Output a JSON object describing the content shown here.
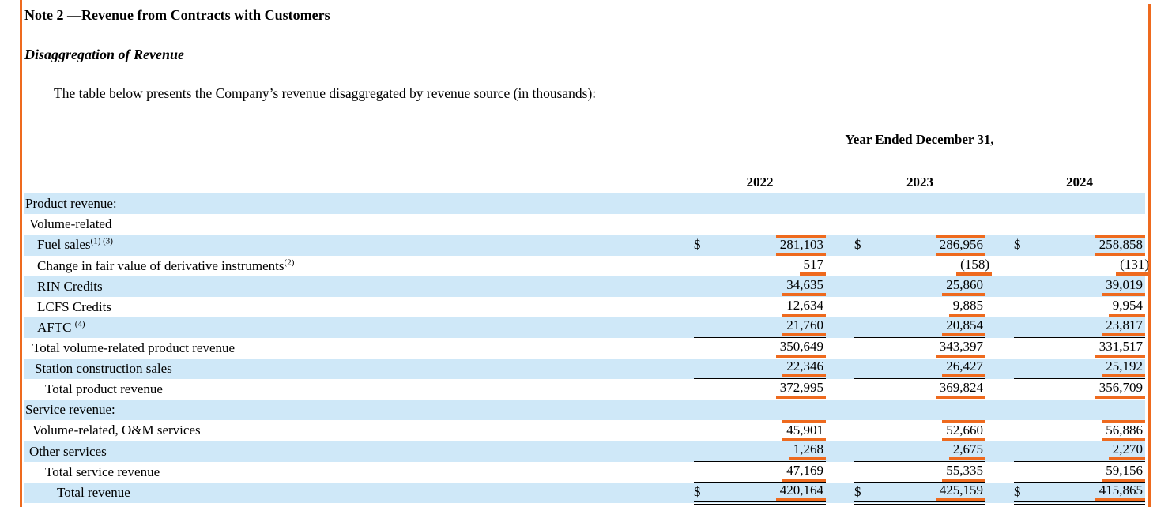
{
  "page": {
    "note_title": "Note 2 —Revenue from Contracts with Customers",
    "section_title": "Disaggregation of Revenue",
    "intro": "The table below presents the Company’s revenue disaggregated by revenue source (in thousands):"
  },
  "colors": {
    "band_blue": "#cfe8f8",
    "accent_orange": "#ee6a1e"
  },
  "table": {
    "span_header": "Year Ended December 31,",
    "years": [
      "2022",
      "2023",
      "2024"
    ],
    "currency_symbol": "$",
    "rows": [
      {
        "label": "Product revenue:",
        "sup": "",
        "indent": 0,
        "band": true,
        "dollar": false,
        "values": [
          "",
          "",
          ""
        ]
      },
      {
        "label": "Volume-related",
        "sup": "",
        "indent": 1,
        "band": false,
        "dollar": false,
        "values": [
          "",
          "",
          ""
        ]
      },
      {
        "label": "Fuel sales",
        "sup": "(1) (3)",
        "indent": 4,
        "band": true,
        "dollar": true,
        "values": [
          "281,103",
          "286,956",
          "258,858"
        ],
        "orange_overline": true
      },
      {
        "label": "Change in fair value of derivative instruments",
        "sup": "(2)",
        "indent": 4,
        "band": false,
        "dollar": false,
        "values": [
          "517",
          "(158)",
          "(131)"
        ]
      },
      {
        "label": "RIN Credits",
        "sup": "",
        "indent": 4,
        "band": true,
        "dollar": false,
        "values": [
          "34,635",
          "25,860",
          "39,019"
        ]
      },
      {
        "label": "LCFS Credits",
        "sup": "",
        "indent": 4,
        "band": false,
        "dollar": false,
        "values": [
          "12,634",
          "9,885",
          "9,954"
        ]
      },
      {
        "label": "AFTC ",
        "sup": "(4)",
        "indent": 4,
        "band": true,
        "dollar": false,
        "values": [
          "21,760",
          "20,854",
          "23,817"
        ]
      },
      {
        "label": "Total volume-related product revenue",
        "sup": "",
        "indent": 2,
        "band": false,
        "dollar": false,
        "values": [
          "350,649",
          "343,397",
          "331,517"
        ],
        "top_rule": true
      },
      {
        "label": "Station construction sales",
        "sup": "",
        "indent": 3,
        "band": true,
        "dollar": false,
        "values": [
          "22,346",
          "26,427",
          "25,192"
        ]
      },
      {
        "label": "Total product revenue",
        "sup": "",
        "indent": 5,
        "band": false,
        "dollar": false,
        "values": [
          "372,995",
          "369,824",
          "356,709"
        ],
        "top_rule": true
      },
      {
        "label": "Service revenue:",
        "sup": "",
        "indent": 0,
        "band": true,
        "dollar": false,
        "values": [
          "",
          "",
          ""
        ]
      },
      {
        "label": "Volume-related, O&M services",
        "sup": "",
        "indent": 2,
        "band": false,
        "dollar": false,
        "values": [
          "45,901",
          "52,660",
          "56,886"
        ],
        "orange_overline": true
      },
      {
        "label": "Other services",
        "sup": "",
        "indent": 1,
        "band": true,
        "dollar": false,
        "values": [
          "1,268",
          "2,675",
          "2,270"
        ]
      },
      {
        "label": "Total service revenue",
        "sup": "",
        "indent": 5,
        "band": false,
        "dollar": false,
        "values": [
          "47,169",
          "55,335",
          "59,156"
        ],
        "top_rule": true
      },
      {
        "label": "Total revenue",
        "sup": "",
        "indent": 6,
        "band": true,
        "dollar": true,
        "values": [
          "420,164",
          "425,159",
          "415,865"
        ],
        "top_rule": true,
        "double_bottom": true
      }
    ]
  }
}
